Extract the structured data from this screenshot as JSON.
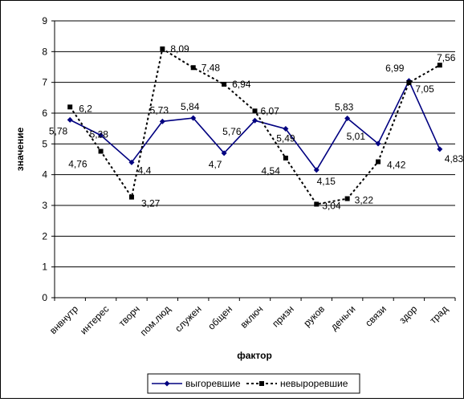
{
  "chart_data": {
    "type": "line",
    "title": "",
    "xlabel": "фактор",
    "ylabel": "значение",
    "ylim": [
      0,
      9
    ],
    "yticks": [
      0,
      1,
      2,
      3,
      4,
      5,
      6,
      7,
      8,
      9
    ],
    "grid": true,
    "legend_position": "bottom",
    "categories": [
      "внвнутр",
      "интерес",
      "творч",
      "пом.люд",
      "служен",
      "общен",
      "включ",
      "призн",
      "руков",
      "деньги",
      "связи",
      "здор",
      "трад"
    ],
    "series": [
      {
        "name": "выгоревшие",
        "color": "#000080",
        "style": "solid-diamond",
        "values": [
          5.78,
          5.28,
          4.4,
          5.73,
          5.84,
          4.7,
          5.76,
          5.49,
          4.15,
          5.83,
          5.01,
          7.05,
          4.83
        ],
        "labels": [
          "5,78",
          "5,28",
          "4,4",
          "5,73",
          "5,84",
          "4,7",
          "5,76",
          "5,49",
          "4,15",
          "5,83",
          "5,01",
          "7,05",
          "4,83"
        ]
      },
      {
        "name": "невыроревшие",
        "color": "#000000",
        "style": "dotted-square",
        "values": [
          6.2,
          4.76,
          3.27,
          8.09,
          7.48,
          6.94,
          6.07,
          4.54,
          3.04,
          3.22,
          4.42,
          6.99,
          7.56
        ],
        "labels": [
          "6,2",
          "4,76",
          "3,27",
          "8,09",
          "7,48",
          "6,94",
          "6,07",
          "4,54",
          "3,04",
          "3,22",
          "4,42",
          "6,99",
          "7,56"
        ]
      }
    ]
  }
}
